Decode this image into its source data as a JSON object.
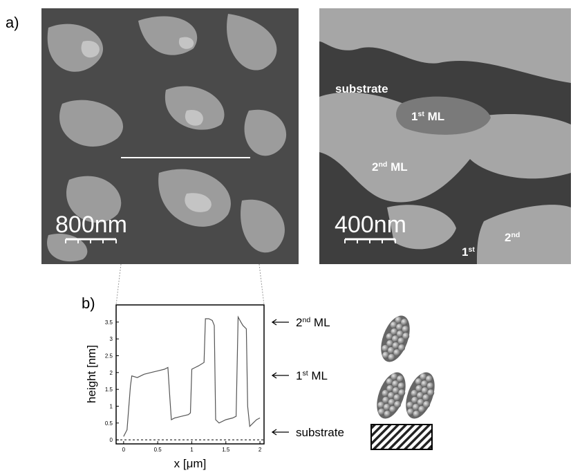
{
  "panel_labels": [
    "a)",
    "b)"
  ],
  "images": [
    {
      "scale_bar": "800nm",
      "labels": []
    },
    {
      "scale_bar": "400nm",
      "labels": [
        {
          "text": "substrate"
        },
        {
          "base": "1",
          "sup": "st",
          "rest": " ML"
        },
        {
          "base": "2",
          "sup": "nd",
          "rest": " ML"
        },
        {
          "base": "1",
          "sup": "st"
        },
        {
          "base": "2",
          "sup": "nd"
        }
      ]
    }
  ],
  "chart_data": {
    "type": "line",
    "x_label": "x [μm]",
    "y_label": "height [nm]",
    "x": [
      0,
      0.05,
      0.1,
      0.12,
      0.2,
      0.3,
      0.4,
      0.5,
      0.6,
      0.65,
      0.68,
      0.7,
      0.75,
      0.85,
      0.95,
      0.98,
      1.0,
      1.05,
      1.1,
      1.18,
      1.2,
      1.25,
      1.3,
      1.33,
      1.35,
      1.4,
      1.5,
      1.6,
      1.65,
      1.68,
      1.72,
      1.75,
      1.8,
      1.82,
      1.85,
      1.9,
      1.95,
      2.0
    ],
    "series": [
      {
        "color": "#555555",
        "values": [
          0.1,
          0.3,
          1.6,
          1.9,
          1.85,
          1.95,
          2.0,
          2.05,
          2.1,
          2.15,
          1.2,
          0.6,
          0.65,
          0.7,
          0.75,
          0.8,
          2.1,
          2.15,
          2.2,
          2.3,
          3.6,
          3.6,
          3.55,
          3.4,
          0.6,
          0.5,
          0.6,
          0.65,
          0.7,
          3.65,
          3.5,
          3.4,
          3.3,
          1.0,
          0.4,
          0.5,
          0.6,
          0.65
        ]
      }
    ],
    "xlim": [
      -0.11,
      2.06
    ],
    "ylim": [
      -0.12,
      4.01
    ],
    "xticks": [
      0,
      0.5,
      1,
      1.5,
      2
    ],
    "yticks": [
      0,
      0.5,
      1,
      1.5,
      2,
      2.5,
      3,
      3.5
    ],
    "annotations": [
      {
        "base": "2",
        "sup": "nd",
        "rest": " ML"
      },
      {
        "base": "1",
        "sup": "st",
        "rest": " ML"
      },
      {
        "text": "substrate"
      }
    ]
  }
}
